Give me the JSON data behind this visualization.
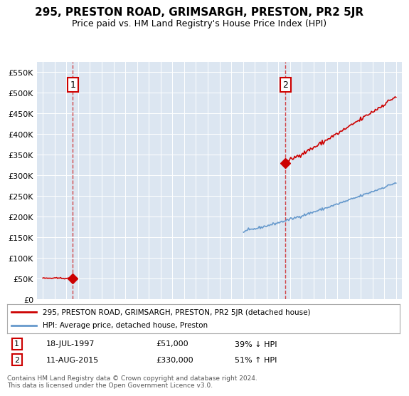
{
  "title": "295, PRESTON ROAD, GRIMSARGH, PRESTON, PR2 5JR",
  "subtitle": "Price paid vs. HM Land Registry's House Price Index (HPI)",
  "legend_line1": "295, PRESTON ROAD, GRIMSARGH, PRESTON, PR2 5JR (detached house)",
  "legend_line2": "HPI: Average price, detached house, Preston",
  "annotation1_date": "18-JUL-1997",
  "annotation1_price": "£51,000",
  "annotation1_hpi": "39% ↓ HPI",
  "annotation1_year": 1997.54,
  "annotation1_value": 51000,
  "annotation2_date": "11-AUG-2015",
  "annotation2_price": "£330,000",
  "annotation2_hpi": "51% ↑ HPI",
  "annotation2_year": 2015.61,
  "annotation2_value": 330000,
  "footer": "Contains HM Land Registry data © Crown copyright and database right 2024.\nThis data is licensed under the Open Government Licence v3.0.",
  "property_color": "#cc0000",
  "hpi_color": "#6699cc",
  "plot_bg_color": "#dce6f1",
  "ylim": [
    0,
    575000
  ],
  "xlim_start": 1994.5,
  "xlim_end": 2025.5
}
